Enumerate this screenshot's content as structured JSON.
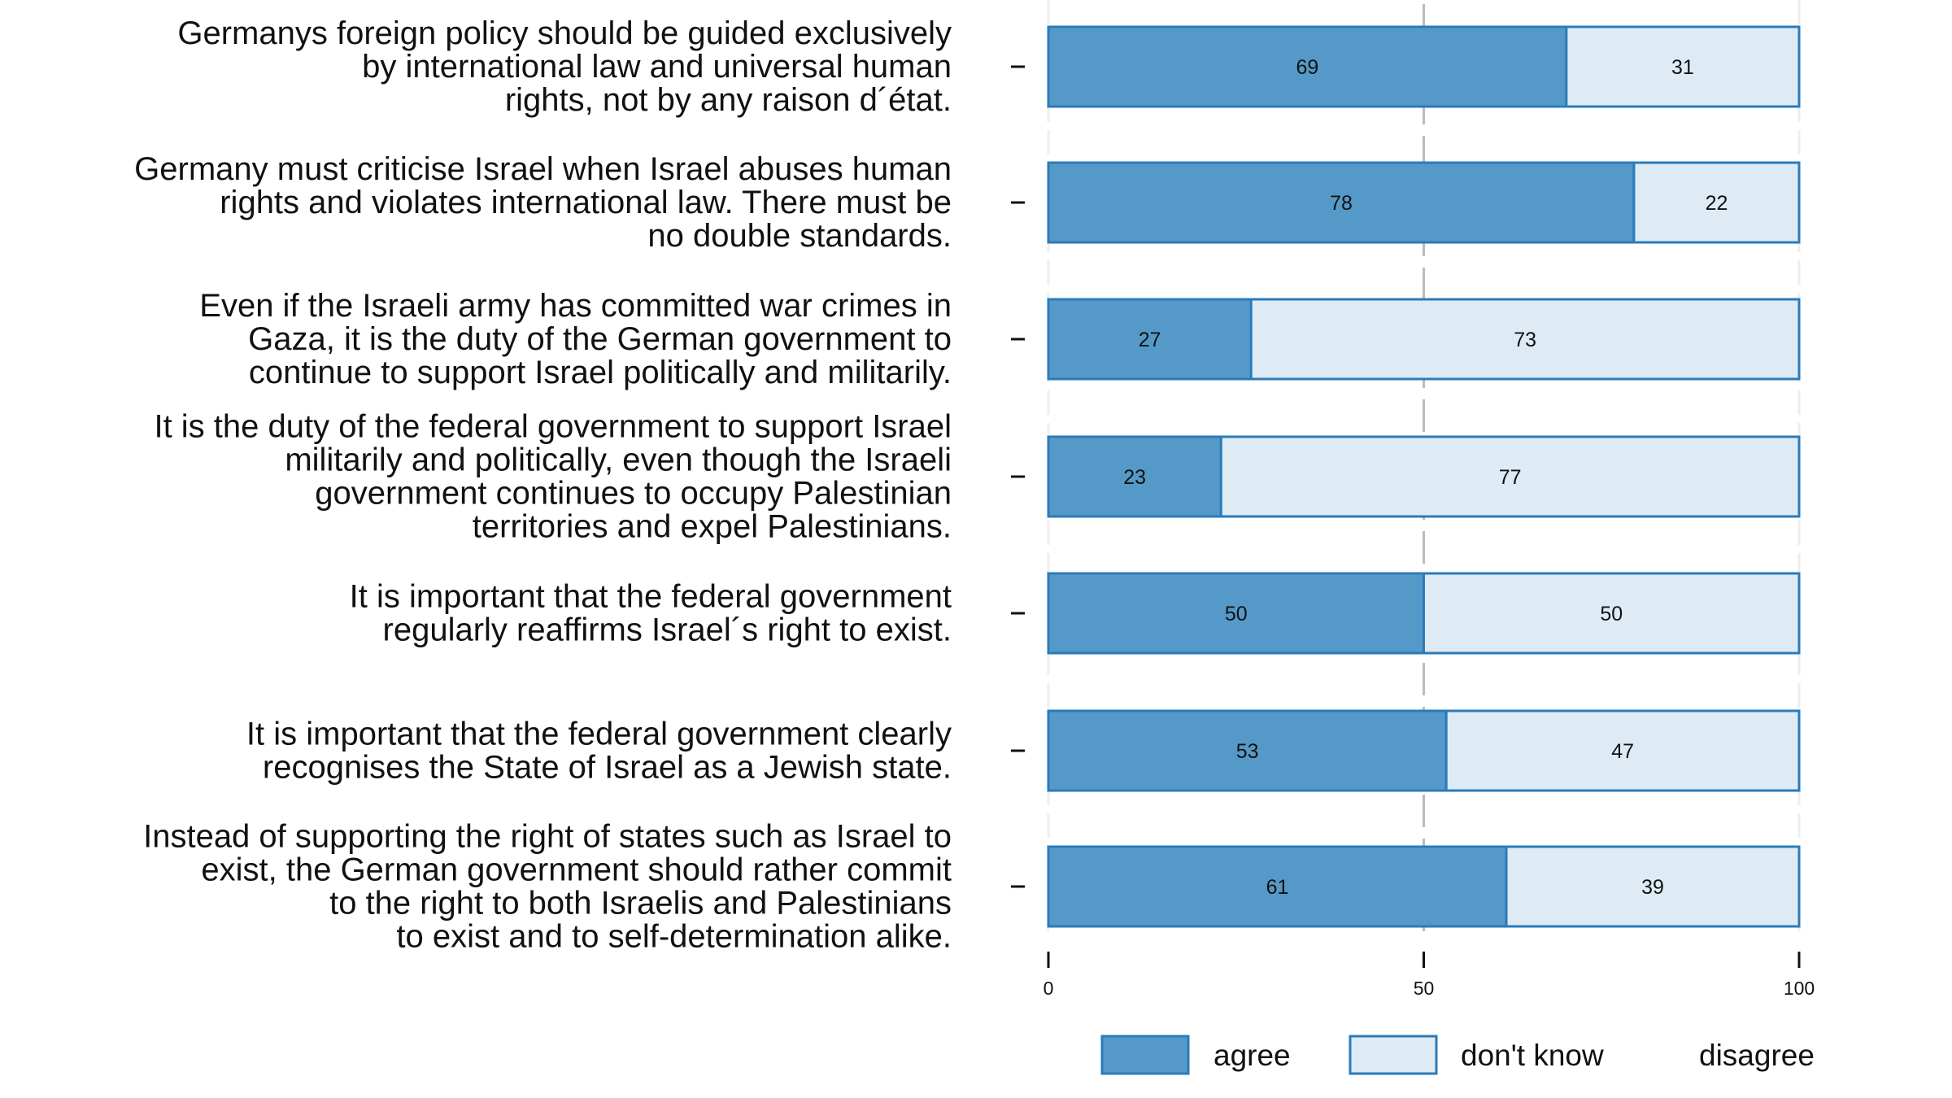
{
  "chart_data": {
    "type": "bar",
    "orientation": "horizontal",
    "stacked": true,
    "categories": [
      [
        "Germanys foreign policy should be guided exclusively",
        "by international law and universal human",
        "rights, not by any raison d´état."
      ],
      [
        "Germany must criticise Israel when Israel abuses human",
        "rights and violates international law. There must be",
        "no double standards."
      ],
      [
        "Even if the Israeli army has committed war crimes in",
        "Gaza, it is the duty of the German government to",
        "continue to support Israel politically and militarily."
      ],
      [
        "It is the duty of the federal government to support Israel",
        "militarily and politically, even though the Israeli",
        "government continues to occupy Palestinian",
        "territories and expel Palestinians."
      ],
      [
        "It is important that the federal government",
        "regularly reaffirms Israel´s right to exist."
      ],
      [
        "It is important that the federal government clearly",
        "recognises the State of Israel as a Jewish state. "
      ],
      [
        "Instead of supporting the right of states such as Israel to",
        "exist, the German government should rather commit",
        "to the right to both Israelis and Palestinians",
        "to exist and to self-determination alike."
      ]
    ],
    "series": [
      {
        "name": "agree",
        "values": [
          69,
          78,
          27,
          23,
          50,
          53,
          61
        ],
        "color": "#5599c8"
      },
      {
        "name": "don't know",
        "values": [
          31,
          22,
          73,
          77,
          50,
          47,
          39
        ],
        "color": "#deebf5"
      },
      {
        "name": "disagree",
        "values": [
          0,
          0,
          0,
          0,
          0,
          0,
          0
        ],
        "color": "#ffffff"
      }
    ],
    "xlim": [
      0,
      100
    ],
    "xticks": [
      "0",
      "50",
      "100"
    ],
    "reference_line": 50,
    "legend": "bottom",
    "border_color": "#2b7bba"
  }
}
